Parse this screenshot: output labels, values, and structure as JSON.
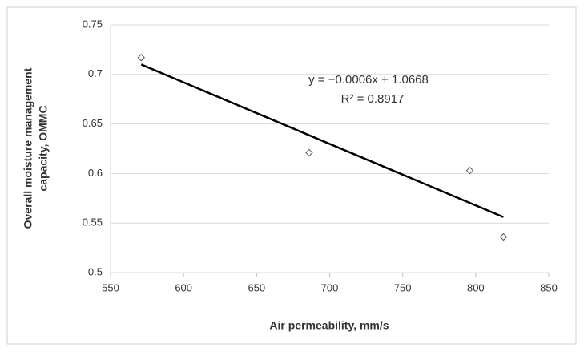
{
  "chart_data": {
    "type": "scatter",
    "xlabel": "Air permeability, mm/s",
    "ylabel": [
      "Overall moisture management",
      "capacity, OMMC"
    ],
    "annotations": [
      "y = −0.0006x + 1.0668",
      "R² = 0.8917"
    ],
    "x": [
      571,
      686,
      796,
      819
    ],
    "values": [
      0.717,
      0.621,
      0.603,
      0.536
    ],
    "trendline": {
      "x": [
        571,
        819
      ],
      "y": [
        0.71,
        0.556
      ],
      "color": "#000000"
    },
    "color": "#555555",
    "xlim": [
      550,
      850
    ],
    "xticks": [
      550,
      600,
      650,
      700,
      750,
      800,
      850
    ],
    "ylim": [
      0.5,
      0.75
    ],
    "yticks": [
      {
        "value": 0.5,
        "label": "0.5"
      },
      0.55,
      0.6,
      0.65,
      0.7,
      0.75
    ],
    "grid": true
  }
}
